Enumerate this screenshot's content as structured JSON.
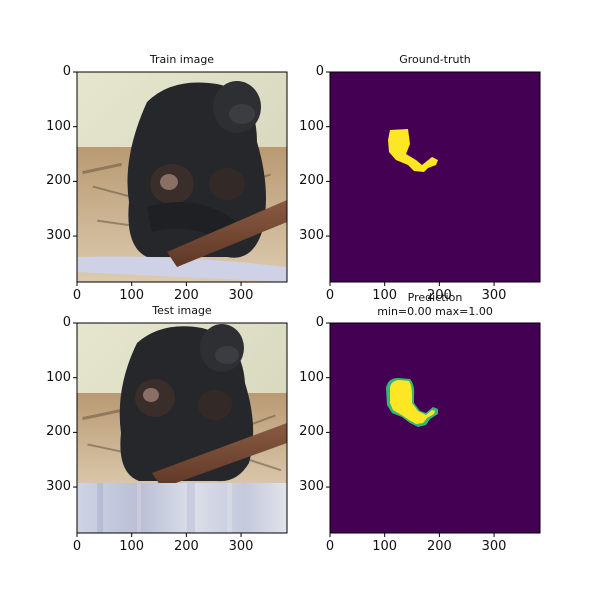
{
  "panels": [
    {
      "id": "train_image",
      "title": [
        "Train image"
      ],
      "kind": "photo",
      "subject": "adult gorilla holding infants",
      "xticks": [
        0,
        100,
        200,
        300
      ],
      "yticks": [
        0,
        100,
        200,
        300
      ]
    },
    {
      "id": "ground_truth",
      "title": [
        "Ground-truth"
      ],
      "kind": "mask",
      "colors": {
        "background": "#440154",
        "mask": "#fde725"
      },
      "xticks": [
        0,
        100,
        200,
        300
      ],
      "yticks": [
        0,
        100,
        200,
        300
      ]
    },
    {
      "id": "test_image",
      "title": [
        "Test image"
      ],
      "kind": "photo",
      "subject": "adult gorilla holding infants",
      "xticks": [
        0,
        100,
        200,
        300
      ],
      "yticks": [
        0,
        100,
        200,
        300
      ]
    },
    {
      "id": "prediction",
      "title": [
        "Prediction",
        "min=0.00 max=1.00"
      ],
      "kind": "mask",
      "colors": {
        "background": "#440154",
        "mask": "#fde725",
        "edge": "#35b779"
      },
      "xticks": [
        0,
        100,
        200,
        300
      ],
      "yticks": [
        0,
        100,
        200,
        300
      ]
    }
  ]
}
